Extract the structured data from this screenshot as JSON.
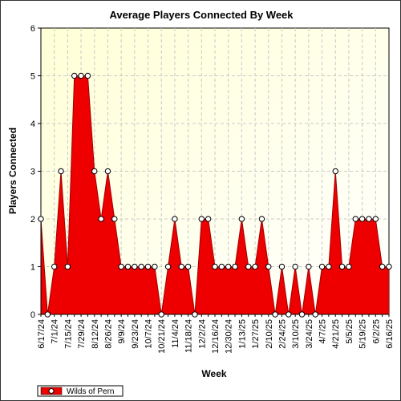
{
  "chart_data": {
    "type": "area",
    "title": "Average Players Connected By Week",
    "xlabel": "Week",
    "ylabel": "Players Connected",
    "ylim": [
      0,
      6
    ],
    "yticks": [
      0,
      1,
      2,
      3,
      4,
      5,
      6
    ],
    "xtick_labels": [
      "6/17/24",
      "7/1/24",
      "7/15/24",
      "7/29/24",
      "8/12/24",
      "8/26/24",
      "9/9/24",
      "9/23/24",
      "10/7/24",
      "10/21/24",
      "11/4/24",
      "11/18/24",
      "12/2/24",
      "12/16/24",
      "12/30/24",
      "1/13/25",
      "1/27/25",
      "2/10/25",
      "2/24/25",
      "3/10/25",
      "3/24/25",
      "4/7/25",
      "4/21/25",
      "5/5/25",
      "5/19/25",
      "6/2/25",
      "6/16/25"
    ],
    "grid": true,
    "legend_position": "bottom-left",
    "series": [
      {
        "name": "Wilds of Pern",
        "color": "#ee0000",
        "x": [
          "6/17/24",
          "6/24/24",
          "7/1/24",
          "7/8/24",
          "7/15/24",
          "7/22/24",
          "7/29/24",
          "8/5/24",
          "8/12/24",
          "8/19/24",
          "8/26/24",
          "9/2/24",
          "9/9/24",
          "9/16/24",
          "9/23/24",
          "9/30/24",
          "10/7/24",
          "10/14/24",
          "10/21/24",
          "10/28/24",
          "11/4/24",
          "11/11/24",
          "11/18/24",
          "11/25/24",
          "12/2/24",
          "12/9/24",
          "12/16/24",
          "12/23/24",
          "12/30/24",
          "1/6/25",
          "1/13/25",
          "1/20/25",
          "1/27/25",
          "2/3/25",
          "2/10/25",
          "2/17/25",
          "2/24/25",
          "3/3/25",
          "3/10/25",
          "3/17/25",
          "3/24/25",
          "3/31/25",
          "4/7/25",
          "4/14/25",
          "4/21/25",
          "4/28/25",
          "5/5/25",
          "5/12/25",
          "5/19/25",
          "5/26/25",
          "6/2/25",
          "6/9/25",
          "6/16/25"
        ],
        "values": [
          2,
          0,
          1,
          3,
          1,
          5,
          5,
          5,
          3,
          2,
          3,
          2,
          1,
          1,
          1,
          1,
          1,
          1,
          0,
          1,
          2,
          1,
          1,
          0,
          2,
          2,
          1,
          1,
          1,
          1,
          2,
          1,
          1,
          2,
          1,
          0,
          1,
          0,
          1,
          0,
          1,
          0,
          1,
          1,
          3,
          1,
          1,
          2,
          2,
          2,
          2,
          1,
          1
        ]
      }
    ]
  }
}
